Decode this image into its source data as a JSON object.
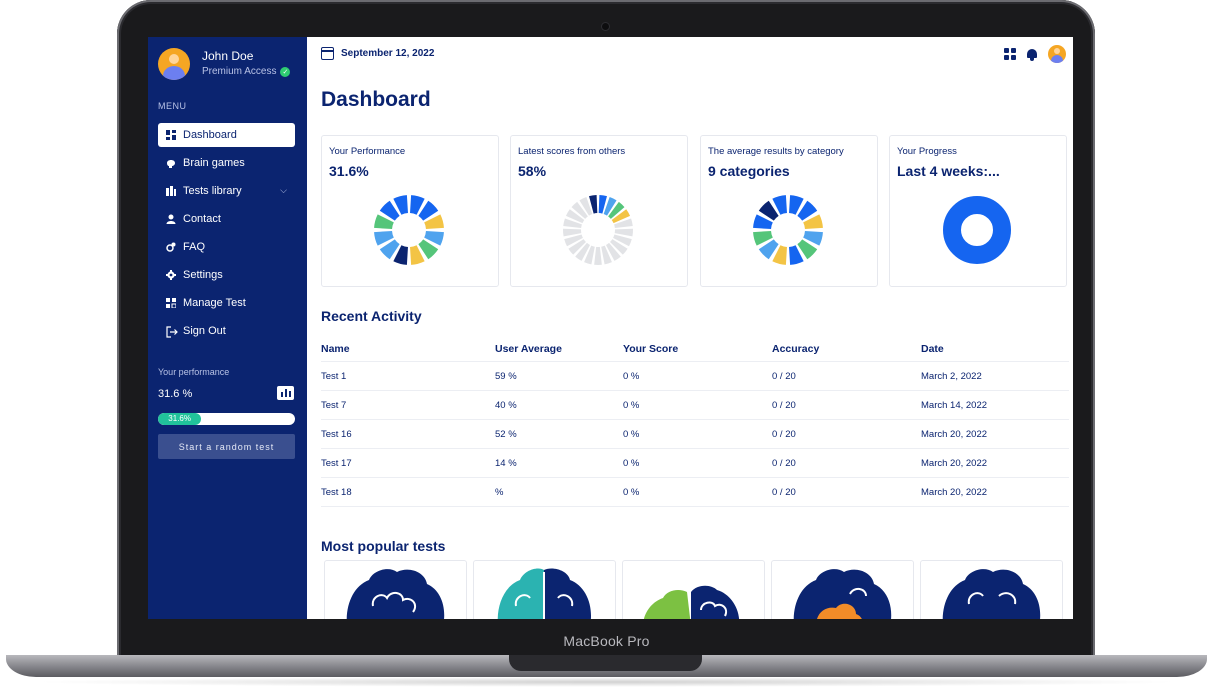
{
  "device": {
    "label": "MacBook Pro"
  },
  "user": {
    "name": "John Doe",
    "plan": "Premium Access"
  },
  "sidebar": {
    "menu_label": "MENU",
    "items": [
      {
        "label": "Dashboard",
        "icon": "dashboard-icon",
        "active": true
      },
      {
        "label": "Brain games",
        "icon": "brain-icon"
      },
      {
        "label": "Tests library",
        "icon": "library-icon",
        "has_submenu": true
      },
      {
        "label": "Contact",
        "icon": "contact-icon"
      },
      {
        "label": "FAQ",
        "icon": "faq-icon"
      },
      {
        "label": "Settings",
        "icon": "gear-icon"
      },
      {
        "label": "Manage Test",
        "icon": "manage-icon"
      },
      {
        "label": "Sign Out",
        "icon": "sign-out-icon"
      }
    ],
    "performance": {
      "label": "Your performance",
      "value": "31.6 %",
      "progress_label": "31.6%",
      "progress_fraction": 0.316
    },
    "random_test_label": "Start a random test"
  },
  "header": {
    "date": "September 12, 2022"
  },
  "page": {
    "title": "Dashboard"
  },
  "colors": {
    "sidebar_bg": "#0b2470",
    "blue": "#1565f0",
    "light_blue": "#4fa3ee",
    "yellow": "#f3c445",
    "green": "#55c57a",
    "navy": "#0b2470",
    "gray": "#e2e3e6",
    "progress": "#21c29b"
  },
  "cards": [
    {
      "title": "Your Performance",
      "value": "31.6%"
    },
    {
      "title": "Latest scores from others",
      "value": "58%"
    },
    {
      "title": "The average results by category",
      "value": "9 categories"
    },
    {
      "title": "Your Progress",
      "value": "Last 4 weeks:..."
    }
  ],
  "recent": {
    "title": "Recent Activity",
    "columns": [
      "Name",
      "User Average",
      "Your Score",
      "Accuracy",
      "Date"
    ],
    "rows": [
      [
        "Test 1",
        "59 %",
        "0 %",
        "0 / 20",
        "March 2, 2022"
      ],
      [
        "Test 7",
        "40 %",
        "0 %",
        "0 / 20",
        "March 14, 2022"
      ],
      [
        "Test 16",
        "52 %",
        "0 %",
        "0 / 20",
        "March 20, 2022"
      ],
      [
        "Test 17",
        "14 %",
        "0 %",
        "0 / 20",
        "March 20, 2022"
      ],
      [
        "Test 18",
        " %",
        "0 %",
        "0 / 20",
        "March 20, 2022"
      ]
    ]
  },
  "popular": {
    "title": "Most popular tests",
    "tests": [
      {
        "icon": "brain-icon",
        "colors": [
          "#0b2470"
        ]
      },
      {
        "icon": "brain-icon",
        "colors": [
          "#2bb3b1",
          "#0b2470"
        ]
      },
      {
        "icon": "brain-icon",
        "colors": [
          "#7cc142",
          "#0b2470"
        ]
      },
      {
        "icon": "brain-icon",
        "colors": [
          "#0b2470",
          "#f28c28"
        ]
      },
      {
        "icon": "brain-icon",
        "colors": [
          "#0b2470"
        ]
      }
    ]
  }
}
